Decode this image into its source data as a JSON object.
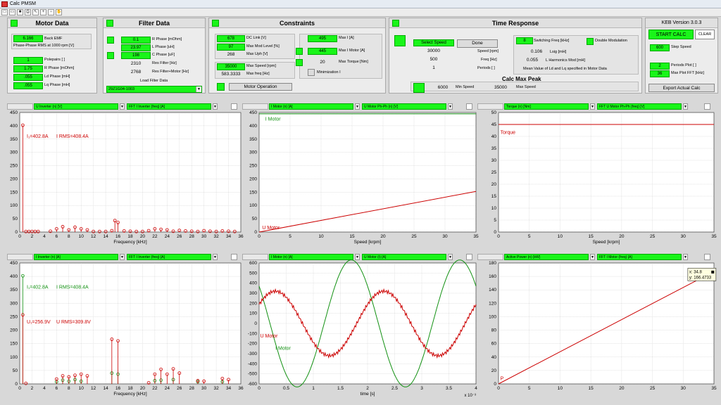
{
  "window": {
    "title": "Calc PMSM"
  },
  "toolbar": {
    "icons": [
      "new-icon",
      "open-icon",
      "save-icon",
      "print-icon",
      "pointer-icon",
      "zoom-in-icon",
      "zoom-out-icon",
      "pan-icon"
    ]
  },
  "motor": {
    "title": "Motor Data",
    "back_emf_value": "6.166",
    "back_emf_label": "Back EMF",
    "back_emf_desc": "Phase-Phase RMS at 1000 rpm [V]",
    "polepairs_value": "1",
    "polepairs_label": "Polepairs [ ]",
    "rphase_value": "1.75",
    "rphase_label": "R Phase [mOhm]",
    "ld_value": ".055",
    "ld_label": "Ld Phase [mH]",
    "lq_value": ".055",
    "lq_label": "Lq Phase [mH]"
  },
  "filter": {
    "title": "Filter Data",
    "r_value": "0.1",
    "r_label": "R Phase [mOhm]",
    "l_value": "23.97",
    "l_label": "L Phase [uH]",
    "c_value": "198",
    "c_label": "C Phase [uF]",
    "res_value": "2310",
    "res_label": "Res Filter [Hz]",
    "res_motor_value": "2768",
    "res_motor_label": "Res Filter+Motor [Hz]",
    "load_label": "Load Filter Data",
    "select_value": "29Z1G04-1003"
  },
  "constraints": {
    "title": "Constraints",
    "dc_value": "678",
    "dc_label": "DC Link [V]",
    "mod_value": "97",
    "mod_label": "Max Mod Level [%]",
    "uph_value": "268",
    "uph_label": "Max Uph [V]",
    "speed_value": "35000",
    "speed_label": "Max Speed [rpm]",
    "freq_value": "583.3333",
    "freq_label": "Max freq [Hz]",
    "operation_label": "Motor Operation",
    "maxi_value": "495",
    "maxi_label": "Max I [A]",
    "maxim_value": "445",
    "maxim_label": "Max I Motor [A]",
    "torque_value": "20",
    "torque_label": "Max Torque [Nm]",
    "minimization_label": "Minimization I"
  },
  "time_response": {
    "title": "Time Response",
    "select_speed_label": "Select Speed",
    "done_label": "Done",
    "speed_value": "30000",
    "speed_label": "Speed [rpm]",
    "freq_value": "500",
    "freq_label": "Freq [Hz]",
    "periods_value": "1",
    "periods_label": "Periods [ ]",
    "switching_value": "8",
    "switching_label": "Switching Freq [kHz]",
    "double_mod_label": "Double Modulation",
    "lsig_value": "0.106",
    "lsig_label": "Lsig [mH]",
    "lharm_value": "0.055",
    "lharm_label": "L Harmonics Mod [mH]",
    "mean_text": "Mean Value of Ld and Lq specified in Motor Data",
    "peak_title": "Calc Max Peak",
    "min_speed_value": "6000",
    "min_speed_label": "Min Speed",
    "max_speed_value": "35000",
    "max_speed_label": "Max Speed"
  },
  "keb": {
    "version": "KEB Version 3.0.3",
    "start_label": "START CALC",
    "clear_label": "CLEAR",
    "step_value": "600",
    "step_label": "Step Speed",
    "periods_plot_value": "2",
    "periods_plot_label": "Periods Plot [ ]",
    "max_plot_value": "36",
    "max_plot_label": "Max Plot FFT [kHz]",
    "export_label": "Export Actual Calc"
  },
  "plots": {
    "p1": {
      "sel_a": "U Inverter (n) [V]",
      "sel_b": "FFT I Inverter (freq) [A]"
    },
    "p2": {
      "sel_a": "I Motor (n) [A]",
      "sel_b": "U Motor Ph-Ph (n) [V]"
    },
    "p3": {
      "sel_a": "Torque (n) [Nm]",
      "sel_b": "FFT U Motor Ph-Ph (freq) [V]"
    },
    "p4": {
      "sel_a": "I Inverter (n) [A]",
      "sel_b": "FFT I Inverter (freq) [A]"
    },
    "p5": {
      "sel_a": "I Motor (n) [A]",
      "sel_b": "U Motor (t) [A]"
    },
    "p6": {
      "sel_a": "Active Power (n) [kW]",
      "sel_b": "FFT I Motor (freq) [A]"
    }
  },
  "colors": {
    "green": "#19f519",
    "red": "#cc0000",
    "dgreen": "#129112"
  },
  "chart_data": [
    {
      "id": "p1",
      "type": "scatter",
      "xlabel": "Frequency [kHz]",
      "xlim": [
        0,
        36
      ],
      "ylim": [
        0,
        450
      ],
      "xticks": [
        0,
        2,
        4,
        6,
        8,
        10,
        12,
        14,
        16,
        18,
        20,
        22,
        24,
        26,
        28,
        30,
        32,
        34,
        36
      ],
      "yticks": [
        0,
        50,
        100,
        150,
        200,
        250,
        300,
        350,
        400,
        450
      ],
      "series": [
        {
          "color": "red",
          "x": [
            0.5,
            1,
            1.5,
            2,
            2.5,
            3,
            5,
            6,
            7,
            8,
            9,
            10,
            11,
            12,
            13,
            14,
            15,
            15.5,
            16,
            17,
            18,
            19,
            20,
            21,
            22,
            23,
            24,
            25,
            26,
            27,
            28,
            29,
            30,
            31,
            32,
            33,
            34,
            35
          ],
          "y": [
            402,
            2,
            2,
            2,
            2,
            2,
            3,
            12,
            20,
            8,
            18,
            12,
            8,
            2,
            2,
            2,
            5,
            43,
            36,
            4,
            3,
            2,
            2,
            5,
            12,
            10,
            8,
            3,
            6,
            4,
            3,
            2,
            5,
            3,
            2,
            4,
            3,
            2
          ]
        }
      ],
      "annotations": [
        "I₁=402.8A",
        "I RMS=408.4A"
      ]
    },
    {
      "id": "p2",
      "type": "line",
      "xlabel": "Speed [krpm]",
      "xlim": [
        0,
        35
      ],
      "ylim": [
        0,
        450
      ],
      "xticks": [
        0,
        5,
        10,
        15,
        20,
        25,
        30,
        35
      ],
      "yticks": [
        0,
        50,
        100,
        150,
        200,
        250,
        300,
        350,
        400,
        450
      ],
      "series": [
        {
          "name": "I Motor",
          "color": "dgreen",
          "x": [
            0,
            35
          ],
          "y": [
            445,
            445
          ]
        },
        {
          "name": "U Motor",
          "color": "red",
          "x": [
            0,
            35
          ],
          "y": [
            0,
            153
          ]
        }
      ]
    },
    {
      "id": "p3",
      "type": "line",
      "xlabel": "Speed [krpm]",
      "xlim": [
        0,
        35
      ],
      "ylim": [
        0,
        50
      ],
      "xticks": [
        0,
        5,
        10,
        15,
        20,
        25,
        30,
        35
      ],
      "yticks": [
        0,
        5,
        10,
        15,
        20,
        25,
        30,
        35,
        40,
        45,
        50
      ],
      "series": [
        {
          "name": "Torque",
          "color": "red",
          "x": [
            0,
            35
          ],
          "y": [
            45,
            45
          ]
        }
      ]
    },
    {
      "id": "p4",
      "type": "scatter",
      "xlabel": "Frequency [kHz]",
      "xlim": [
        0,
        36
      ],
      "ylim": [
        0,
        450
      ],
      "xticks": [
        0,
        2,
        4,
        6,
        8,
        10,
        12,
        14,
        16,
        18,
        20,
        22,
        24,
        26,
        28,
        30,
        32,
        34,
        36
      ],
      "yticks": [
        0,
        50,
        100,
        150,
        200,
        250,
        300,
        350,
        400,
        450
      ],
      "series": [
        {
          "color": "dgreen",
          "x": [
            0.5,
            6,
            7,
            8,
            9,
            10,
            15,
            16,
            22,
            23,
            25,
            29,
            33
          ],
          "y": [
            402,
            8,
            14,
            10,
            16,
            10,
            40,
            36,
            12,
            14,
            16,
            8,
            8
          ]
        },
        {
          "color": "red",
          "x": [
            0.5,
            1,
            6,
            7,
            8,
            9,
            10,
            11,
            15,
            16,
            21,
            22,
            23,
            24,
            25,
            26,
            29,
            30,
            33,
            34
          ],
          "y": [
            257,
            2,
            18,
            30,
            26,
            32,
            36,
            30,
            166,
            160,
            4,
            36,
            54,
            36,
            56,
            40,
            12,
            10,
            20,
            16
          ]
        }
      ],
      "annotations": [
        "I₁=402.8A",
        "I RMS=408.4A",
        "U₁=256.9V",
        "U RMS=309.8V"
      ]
    },
    {
      "id": "p5",
      "type": "line",
      "xlabel": "time [s]",
      "xlim": [
        0,
        4
      ],
      "ylim": [
        -600,
        600
      ],
      "xticks": [
        0,
        0.5,
        1,
        1.5,
        2,
        2.5,
        3,
        3.5,
        4
      ],
      "yticks": [
        -600,
        -500,
        -400,
        -300,
        -200,
        -100,
        0,
        100,
        200,
        300,
        400,
        500,
        600
      ],
      "x_scale": "x 10⁻³",
      "series": [
        {
          "name": "I Motor",
          "color": "dgreen",
          "amplitude": 630,
          "period_ms": 2,
          "phase_ms": -0.3
        },
        {
          "name": "U Motor",
          "color": "red",
          "amplitude": 320,
          "period_ms": 2,
          "phase_ms": 0.3
        }
      ]
    },
    {
      "id": "p6",
      "type": "line",
      "xlim": [
        0,
        35
      ],
      "ylim": [
        0,
        180
      ],
      "xticks": [
        0,
        5,
        10,
        15,
        20,
        25,
        30,
        35
      ],
      "yticks": [
        0,
        20,
        40,
        60,
        80,
        100,
        120,
        140,
        160,
        180
      ],
      "series": [
        {
          "name": "P",
          "color": "red",
          "x": [
            0,
            34.8
          ],
          "y": [
            0,
            166.4733
          ]
        }
      ],
      "datatip": {
        "x": "x: 34.8",
        "y": "y: 166.4733"
      }
    }
  ]
}
